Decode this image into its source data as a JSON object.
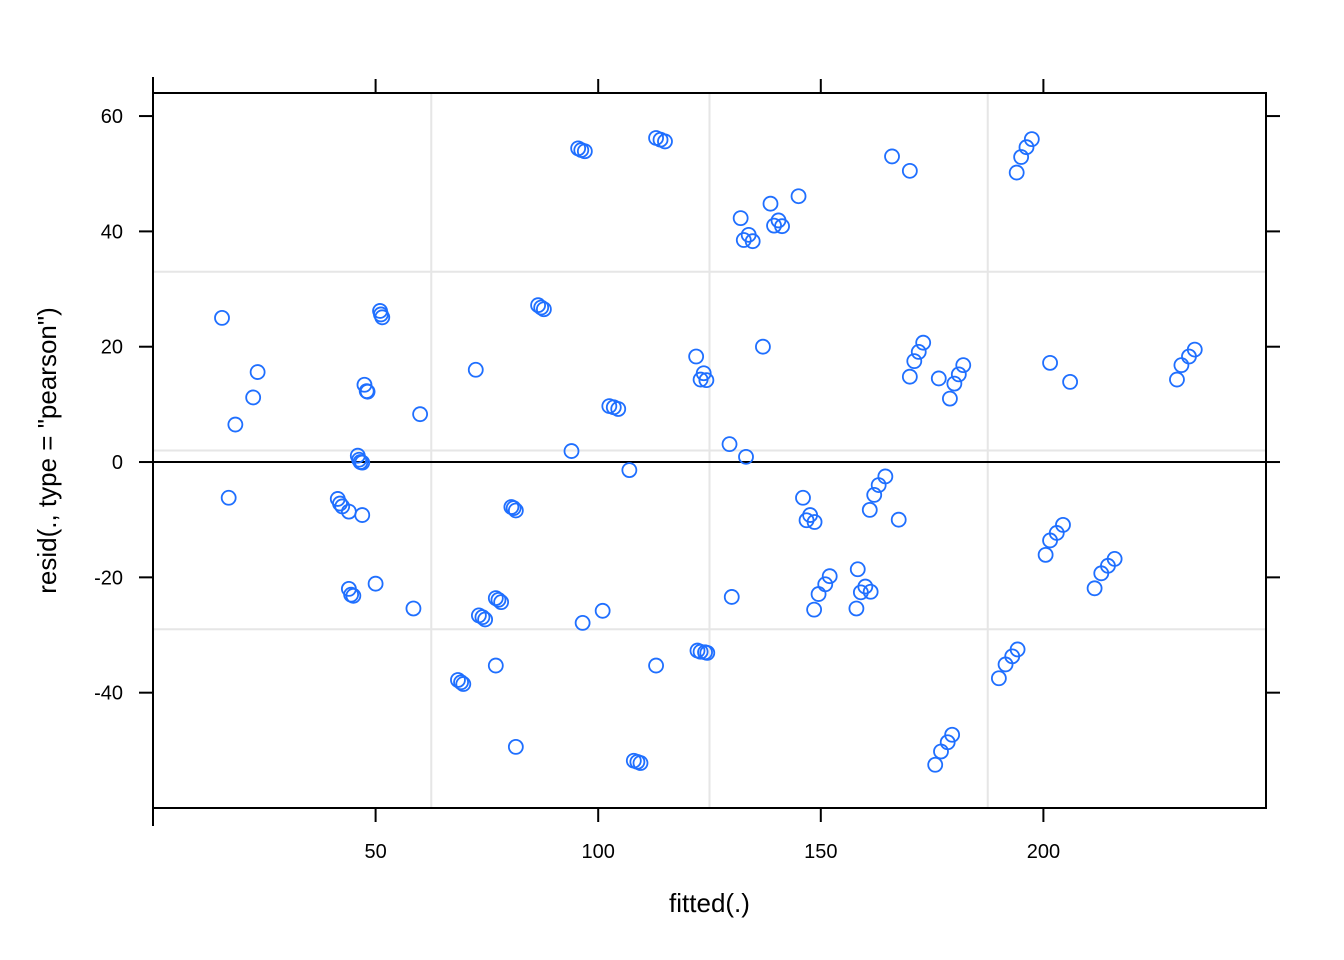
{
  "chart_data": {
    "type": "scatter",
    "xlabel": "fitted(.)",
    "ylabel": "resid(., type = \"pearson\")",
    "xlim": [
      0,
      250
    ],
    "ylim": [
      -60,
      64
    ],
    "x_ticks": [
      50,
      100,
      150,
      200
    ],
    "y_ticks": [
      -40,
      -20,
      0,
      20,
      40,
      60
    ],
    "x_tick_labels": [
      "50",
      "100",
      "150",
      "200"
    ],
    "y_tick_labels": [
      "-40",
      "-20",
      "0",
      "20",
      "40",
      "60"
    ],
    "reference_line_y": 0,
    "grid": true,
    "grid_x": [
      62.5,
      125,
      187.5
    ],
    "grid_y": [
      -29,
      2,
      33
    ],
    "marker": "open-circle",
    "colors": {
      "points": "#1f6fff",
      "grid": "#e6e6e6",
      "frame": "#000000",
      "background": "#ffffff"
    },
    "points": [
      [
        15.5,
        25
      ],
      [
        17,
        -6.2
      ],
      [
        18.5,
        6.5
      ],
      [
        22.5,
        11.2
      ],
      [
        23.5,
        15.6
      ],
      [
        41.5,
        -6.4
      ],
      [
        42,
        -7.2
      ],
      [
        42.5,
        -7.7
      ],
      [
        44,
        -8.6
      ],
      [
        44,
        -22
      ],
      [
        44.5,
        -23
      ],
      [
        45,
        -23.2
      ],
      [
        46,
        1.1
      ],
      [
        46.3,
        0.4
      ],
      [
        46.6,
        0
      ],
      [
        47,
        -0.1
      ],
      [
        47,
        -9.2
      ],
      [
        47.5,
        13.4
      ],
      [
        48,
        12.3
      ],
      [
        48.2,
        12.2
      ],
      [
        50,
        -21.1
      ],
      [
        51,
        26.2
      ],
      [
        51.2,
        25.6
      ],
      [
        51.5,
        25.1
      ],
      [
        58.5,
        -25.4
      ],
      [
        60,
        8.3
      ],
      [
        68.5,
        -37.8
      ],
      [
        69.2,
        -38.2
      ],
      [
        69.7,
        -38.5
      ],
      [
        72.5,
        16
      ],
      [
        73.2,
        -26.6
      ],
      [
        74,
        -26.9
      ],
      [
        74.6,
        -27.3
      ],
      [
        77,
        -35.3
      ],
      [
        77,
        -23.6
      ],
      [
        77.6,
        -23.9
      ],
      [
        78.2,
        -24.3
      ],
      [
        80.5,
        -7.8
      ],
      [
        81,
        -8
      ],
      [
        81.5,
        -8.4
      ],
      [
        81.5,
        -49.4
      ],
      [
        86.5,
        27.2
      ],
      [
        87.2,
        26.8
      ],
      [
        87.8,
        26.5
      ],
      [
        94,
        1.9
      ],
      [
        95.5,
        54.4
      ],
      [
        96.2,
        54.1
      ],
      [
        97,
        53.9
      ],
      [
        96.5,
        -27.9
      ],
      [
        101,
        -25.8
      ],
      [
        102.5,
        9.7
      ],
      [
        103.5,
        9.5
      ],
      [
        104.5,
        9.2
      ],
      [
        107,
        -1.4
      ],
      [
        108,
        -51.8
      ],
      [
        108.8,
        -52
      ],
      [
        109.5,
        -52.2
      ],
      [
        113,
        -35.3
      ],
      [
        113,
        56.2
      ],
      [
        114,
        55.9
      ],
      [
        115,
        55.6
      ],
      [
        122,
        18.3
      ],
      [
        122.3,
        -32.7
      ],
      [
        123,
        14.3
      ],
      [
        123,
        -32.9
      ],
      [
        123.7,
        15.4
      ],
      [
        124,
        -33
      ],
      [
        124.3,
        14.2
      ],
      [
        124.5,
        -33.1
      ],
      [
        129.5,
        3.1
      ],
      [
        130,
        -23.4
      ],
      [
        132,
        42.3
      ],
      [
        132.7,
        38.5
      ],
      [
        133.2,
        0.9
      ],
      [
        133.8,
        39.4
      ],
      [
        134.7,
        38.3
      ],
      [
        137,
        20
      ],
      [
        138.7,
        44.8
      ],
      [
        139.5,
        41
      ],
      [
        140.5,
        41.9
      ],
      [
        141.3,
        40.9
      ],
      [
        145,
        46.1
      ],
      [
        146,
        -6.2
      ],
      [
        146.8,
        -10.1
      ],
      [
        147.6,
        -9.2
      ],
      [
        148.6,
        -10.4
      ],
      [
        148.5,
        -25.6
      ],
      [
        149.5,
        -22.9
      ],
      [
        151,
        -21.2
      ],
      [
        152,
        -19.8
      ],
      [
        158,
        -25.4
      ],
      [
        158.3,
        -18.6
      ],
      [
        159,
        -22.6
      ],
      [
        160,
        -21.6
      ],
      [
        161,
        -8.3
      ],
      [
        161.2,
        -22.5
      ],
      [
        162,
        -5.7
      ],
      [
        163,
        -4
      ],
      [
        164.5,
        -2.5
      ],
      [
        166,
        53
      ],
      [
        167.5,
        -10
      ],
      [
        170,
        50.5
      ],
      [
        170,
        14.8
      ],
      [
        171,
        17.5
      ],
      [
        172,
        19.1
      ],
      [
        173,
        20.7
      ],
      [
        175.7,
        -52.5
      ],
      [
        176.5,
        14.5
      ],
      [
        177,
        -50.2
      ],
      [
        178.5,
        -48.6
      ],
      [
        179,
        11
      ],
      [
        179.5,
        -47.3
      ],
      [
        180,
        13.6
      ],
      [
        181,
        15.2
      ],
      [
        182,
        16.8
      ],
      [
        190,
        -37.5
      ],
      [
        191.5,
        -35.1
      ],
      [
        193,
        -33.7
      ],
      [
        194.2,
        -32.5
      ],
      [
        194,
        50.2
      ],
      [
        195,
        52.9
      ],
      [
        196.2,
        54.6
      ],
      [
        197.4,
        56
      ],
      [
        200.5,
        -16.1
      ],
      [
        201.5,
        -13.6
      ],
      [
        201.5,
        17.2
      ],
      [
        203,
        -12.3
      ],
      [
        204.4,
        -10.9
      ],
      [
        206,
        13.9
      ],
      [
        211.5,
        -21.9
      ],
      [
        213,
        -19.3
      ],
      [
        214.5,
        -18
      ],
      [
        216,
        -16.8
      ],
      [
        230,
        14.3
      ],
      [
        231,
        16.8
      ],
      [
        232.7,
        18.3
      ],
      [
        234,
        19.5
      ]
    ]
  }
}
